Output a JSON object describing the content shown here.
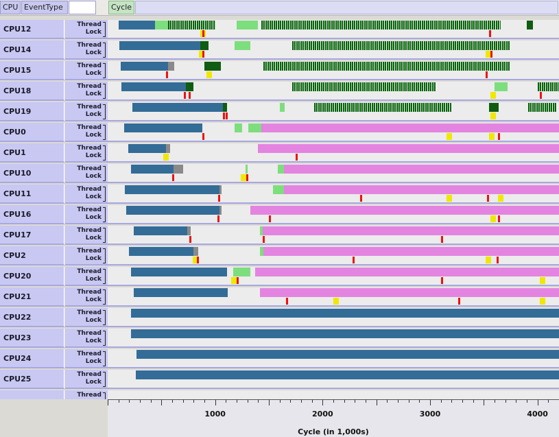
{
  "header": {
    "col_cpu": "CPU",
    "col_event_type": "EventType",
    "col_cycle": "Cycle"
  },
  "lane_labels": {
    "thread": "Thread",
    "lock": "Lock"
  },
  "colors": {
    "thread_running": "#336c97",
    "thread_waiting": "#e384e0",
    "lock_dark": "#0f5c12",
    "lock_light": "#7dde7d",
    "lock_gray": "#8a8a8a",
    "lock_event_red": "#e11111",
    "lock_event_yellow": "#f1e800",
    "row_header": "#c8c8f2"
  },
  "rows": [
    {
      "cpu": "CPU12"
    },
    {
      "cpu": "CPU14"
    },
    {
      "cpu": "CPU15"
    },
    {
      "cpu": "CPU18"
    },
    {
      "cpu": "CPU19"
    },
    {
      "cpu": "CPU0"
    },
    {
      "cpu": "CPU1"
    },
    {
      "cpu": "CPU10"
    },
    {
      "cpu": "CPU11"
    },
    {
      "cpu": "CPU16"
    },
    {
      "cpu": "CPU17"
    },
    {
      "cpu": "CPU2"
    },
    {
      "cpu": "CPU20"
    },
    {
      "cpu": "CPU21"
    },
    {
      "cpu": "CPU22"
    },
    {
      "cpu": "CPU23"
    },
    {
      "cpu": "CPU24"
    },
    {
      "cpu": "CPU25"
    },
    {
      "cpu": ""
    }
  ],
  "chart_data": {
    "type": "timeline",
    "xlabel": "Cycle (in 1,000s)",
    "xticks": [
      "1000",
      "2000",
      "3000",
      "4000"
    ],
    "xlim": [
      0,
      4200
    ]
  }
}
